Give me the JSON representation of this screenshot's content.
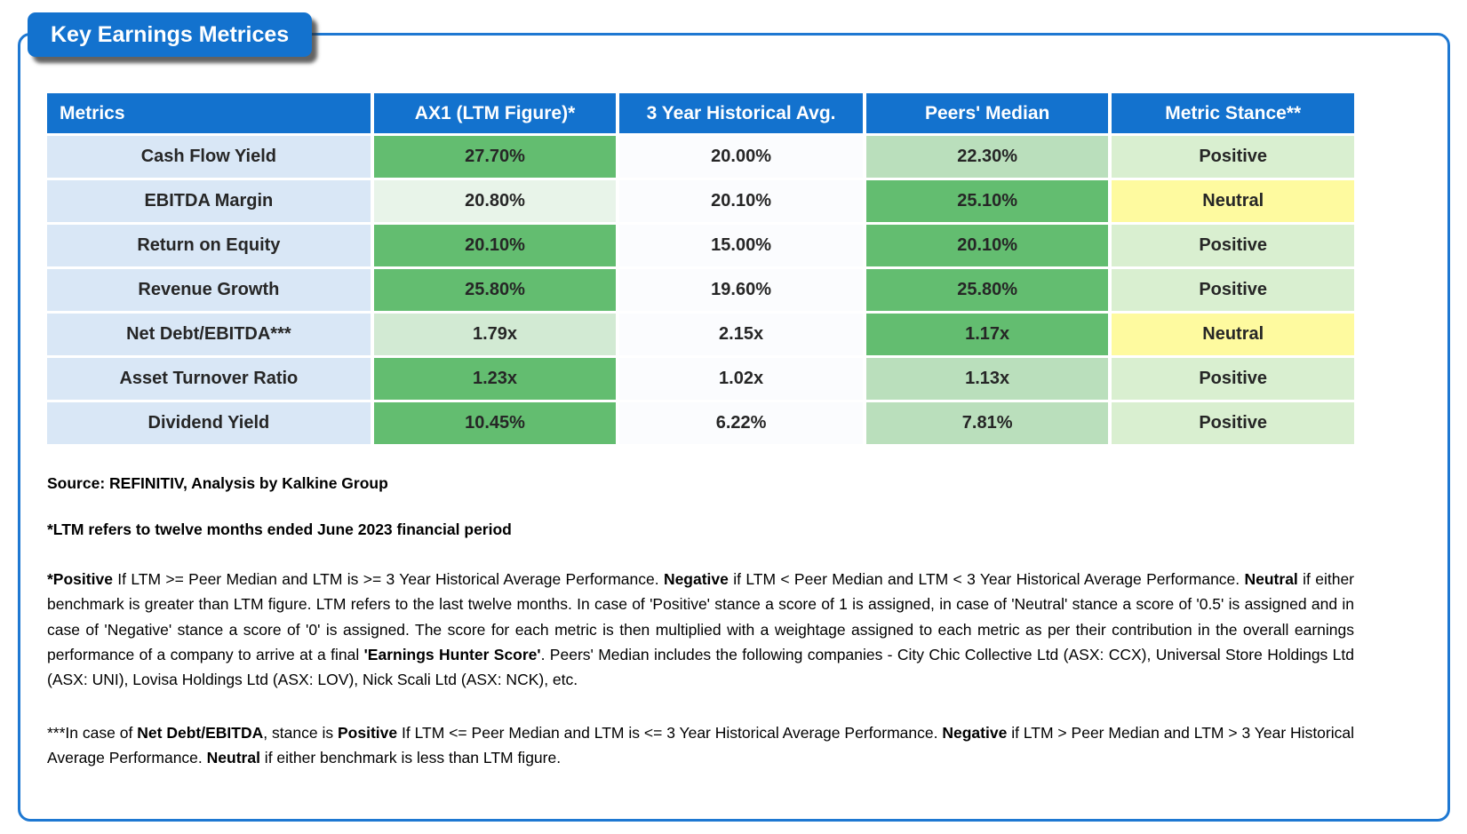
{
  "title": "Key Earnings Metrices",
  "colors": {
    "frame_border_blue": "#1E78D2",
    "header_blue": "#1372CE",
    "metric_label_bg": "#D9E7F6",
    "metric_label_text": "#1B74D2",
    "strong_green": "#63BD70",
    "light_green": "#BADFBC",
    "pale_green": "#D2EAD3",
    "very_pale_green": "#E8F4E9",
    "neutral_yellow": "#FEFA9F",
    "positive_green": "#D9EFD0"
  },
  "table": {
    "columns": [
      {
        "label": "Metrics",
        "align": "left"
      },
      {
        "label": "AX1 (LTM Figure)*",
        "align": "center"
      },
      {
        "label": "3 Year Historical Avg.",
        "align": "center"
      },
      {
        "label": "Peers' Median",
        "align": "center"
      },
      {
        "label": "Metric Stance**",
        "align": "center"
      }
    ],
    "rows": [
      {
        "metric": "Cash Flow Yield",
        "cells": [
          {
            "text": "27.70%",
            "bg": "g1"
          },
          {
            "text": "20.00%",
            "bg": "w"
          },
          {
            "text": "22.30%",
            "bg": "g2"
          },
          {
            "text": "Positive",
            "bg": "pos"
          }
        ]
      },
      {
        "metric": "EBITDA Margin",
        "cells": [
          {
            "text": "20.80%",
            "bg": "g4"
          },
          {
            "text": "20.10%",
            "bg": "w"
          },
          {
            "text": "25.10%",
            "bg": "g1"
          },
          {
            "text": "Neutral",
            "bg": "neu"
          }
        ]
      },
      {
        "metric": "Return on Equity",
        "cells": [
          {
            "text": "20.10%",
            "bg": "g1"
          },
          {
            "text": "15.00%",
            "bg": "w"
          },
          {
            "text": "20.10%",
            "bg": "g1"
          },
          {
            "text": "Positive",
            "bg": "pos"
          }
        ]
      },
      {
        "metric": "Revenue Growth",
        "cells": [
          {
            "text": "25.80%",
            "bg": "g1"
          },
          {
            "text": "19.60%",
            "bg": "w"
          },
          {
            "text": "25.80%",
            "bg": "g1"
          },
          {
            "text": "Positive",
            "bg": "pos"
          }
        ]
      },
      {
        "metric": "Net Debt/EBITDA***",
        "cells": [
          {
            "text": "1.79x",
            "bg": "g3"
          },
          {
            "text": "2.15x",
            "bg": "w"
          },
          {
            "text": "1.17x",
            "bg": "g1"
          },
          {
            "text": "Neutral",
            "bg": "neu"
          }
        ]
      },
      {
        "metric": "Asset Turnover Ratio",
        "cells": [
          {
            "text": "1.23x",
            "bg": "g1"
          },
          {
            "text": "1.02x",
            "bg": "w"
          },
          {
            "text": "1.13x",
            "bg": "g2"
          },
          {
            "text": "Positive",
            "bg": "pos"
          }
        ]
      },
      {
        "metric": "Dividend Yield",
        "cells": [
          {
            "text": "10.45%",
            "bg": "g1"
          },
          {
            "text": "6.22%",
            "bg": "w"
          },
          {
            "text": "7.81%",
            "bg": "g2"
          },
          {
            "text": "Positive",
            "bg": "pos"
          }
        ]
      }
    ]
  },
  "notes": {
    "source": "Source: REFINITIV, Analysis by Kalkine Group",
    "ltm_note": "*LTM refers to twelve months ended June 2023 financial period",
    "paragraphs": [
      {
        "segments": [
          {
            "t": "*Positive",
            "b": true
          },
          {
            "t": " If LTM >= Peer Median and LTM is >= 3 Year Historical Average Performance. ",
            "b": false
          },
          {
            "t": "Negative",
            "b": true
          },
          {
            "t": " if LTM < Peer Median and LTM < 3 Year Historical Average Performance. ",
            "b": false
          },
          {
            "t": "Neutral",
            "b": true
          },
          {
            "t": " if either benchmark is greater than LTM figure. LTM refers to the last twelve months. In case of 'Positive' stance a score of 1 is assigned, in case of 'Neutral' stance a score of '0.5' is assigned and in case of 'Negative' stance a score of '0' is assigned. The score for each metric is then multiplied with a weightage assigned to each metric as per their contribution in the overall earnings performance of a company to arrive at a final ",
            "b": false
          },
          {
            "t": "'Earnings Hunter Score'",
            "b": true
          },
          {
            "t": ". Peers' Median includes the following companies - City Chic Collective Ltd (ASX: CCX), Universal Store Holdings Ltd (ASX: UNI), Lovisa Holdings Ltd (ASX: LOV), Nick Scali Ltd (ASX: NCK), etc.",
            "b": false
          }
        ]
      },
      {
        "segments": [
          {
            "t": "***In case of ",
            "b": false
          },
          {
            "t": "Net Debt/EBITDA",
            "b": true
          },
          {
            "t": ", stance is ",
            "b": false
          },
          {
            "t": "Positive",
            "b": true
          },
          {
            "t": " If LTM <= Peer Median and LTM is <= 3 Year Historical Average Performance. ",
            "b": false
          },
          {
            "t": "Negative",
            "b": true
          },
          {
            "t": " if LTM > Peer Median and LTM > 3 Year Historical Average Performance. ",
            "b": false
          },
          {
            "t": "Neutral",
            "b": true
          },
          {
            "t": " if either benchmark is less than LTM figure.",
            "b": false
          }
        ]
      }
    ]
  }
}
